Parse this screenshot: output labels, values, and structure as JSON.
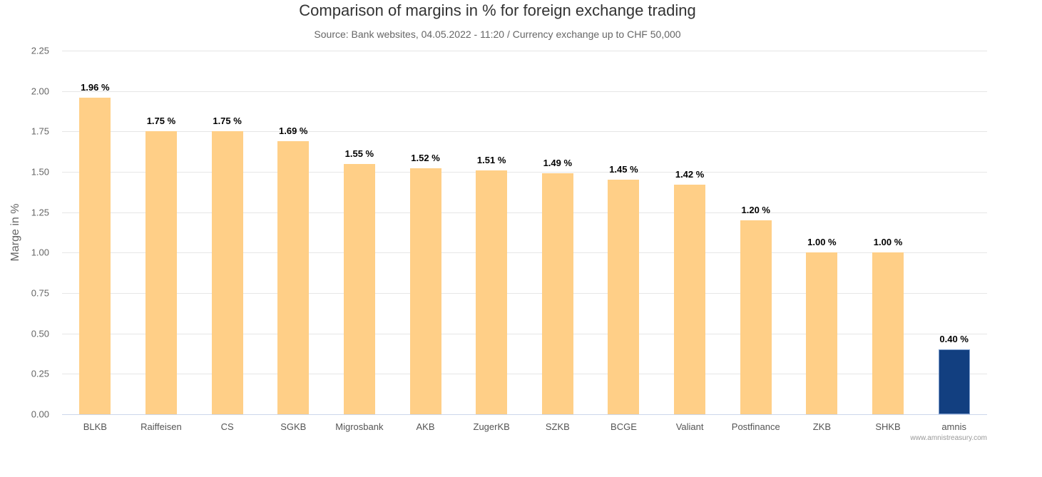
{
  "chart_data": {
    "type": "bar",
    "title": "Comparison of margins in % for foreign exchange trading",
    "subtitle": "Source: Bank websites, 04.05.2022 - 11:20 / Currency exchange up to CHF 50,000",
    "xlabel": "",
    "ylabel": "Marge in %",
    "ylim": [
      0,
      2.25
    ],
    "yticks": [
      "0.00",
      "0.25",
      "0.50",
      "0.75",
      "1.00",
      "1.25",
      "1.50",
      "1.75",
      "2.00",
      "2.25"
    ],
    "grid": true,
    "legend": "none",
    "categories": [
      "BLKB",
      "Raiffeisen",
      "CS",
      "SGKB",
      "Migrosbank",
      "AKB",
      "ZugerKB",
      "SZKB",
      "BCGE",
      "Valiant",
      "Postfinance",
      "ZKB",
      "SHKB",
      "amnis"
    ],
    "values": [
      1.96,
      1.75,
      1.75,
      1.69,
      1.55,
      1.52,
      1.51,
      1.49,
      1.45,
      1.42,
      1.2,
      1.0,
      1.0,
      0.4
    ],
    "data_labels": [
      "1.96 %",
      "1.75 %",
      "1.75 %",
      "1.69 %",
      "1.55 %",
      "1.52 %",
      "1.51 %",
      "1.49 %",
      "1.45 %",
      "1.42 %",
      "1.20 %",
      "1.00 %",
      "1.00 %",
      "0.40 %"
    ],
    "colors": {
      "default_bar": "#ffcf87",
      "highlight_bar": "#123f80",
      "highlight_category": "amnis"
    },
    "credit": "www.amnistreasury.com"
  }
}
